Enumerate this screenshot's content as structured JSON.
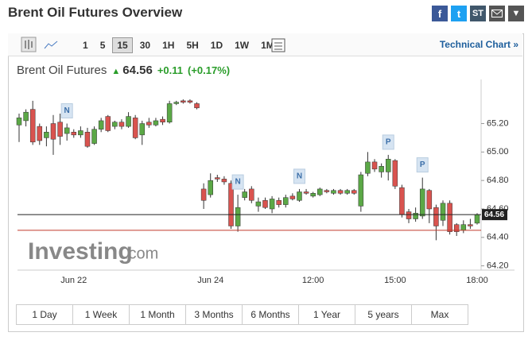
{
  "header": {
    "title": "Brent Oil Futures Overview",
    "share_icons": [
      "f",
      "t",
      "ST"
    ]
  },
  "toolbar": {
    "intervals": [
      "1",
      "5",
      "15",
      "30",
      "1H",
      "5H",
      "1D",
      "1W",
      "1M"
    ],
    "active": "15",
    "link": "Technical Chart »"
  },
  "quote": {
    "name": "Brent Oil Futures",
    "price": "64.56",
    "change": "+0.11",
    "change_pct": "(+0.17%)"
  },
  "watermark": {
    "brand": "Investing",
    "suffix": ".com"
  },
  "chart_data": {
    "type": "candlestick",
    "categories": [
      null,
      null,
      null,
      null,
      null,
      null,
      null,
      null,
      "Jun 22",
      null,
      null,
      null,
      null,
      null,
      null,
      null,
      null,
      null,
      null,
      null,
      null,
      null,
      null,
      null,
      null,
      null,
      null,
      null,
      "Jun 24",
      null,
      null,
      null,
      null,
      null,
      null,
      null,
      null,
      null,
      null,
      null,
      null,
      null,
      null,
      "12:00",
      null,
      null,
      null,
      null,
      null,
      null,
      null,
      null,
      null,
      null,
      null,
      "15:00",
      null,
      null,
      null,
      null,
      null,
      null,
      null,
      null,
      null,
      null,
      null,
      "18:00"
    ],
    "open": [
      65.19,
      65.22,
      65.3,
      65.18,
      65.1,
      65.2,
      65.21,
      65.13,
      65.14,
      65.12,
      65.14,
      65.06,
      65.16,
      65.25,
      65.18,
      65.21,
      65.18,
      65.24,
      65.12,
      65.21,
      65.19,
      65.23,
      65.21,
      65.34,
      65.36,
      65.36,
      65.34,
      64.74,
      64.7,
      64.82,
      64.81,
      64.78,
      64.48,
      64.68,
      64.74,
      64.62,
      64.66,
      64.6,
      64.66,
      64.63,
      64.69,
      64.66,
      64.72,
      64.69,
      64.7,
      64.73,
      64.71,
      64.73,
      64.71,
      64.73,
      64.62,
      64.85,
      64.93,
      64.86,
      64.86,
      64.94,
      64.75,
      64.58,
      64.53,
      64.55,
      64.73,
      64.61,
      64.52,
      64.64,
      64.49,
      64.45,
      64.49,
      64.5
    ],
    "high": [
      65.27,
      65.3,
      65.36,
      65.2,
      65.18,
      65.26,
      65.27,
      65.2,
      65.16,
      65.18,
      65.17,
      65.18,
      65.24,
      65.26,
      65.22,
      65.23,
      65.28,
      65.26,
      65.22,
      65.24,
      65.24,
      65.25,
      65.36,
      65.36,
      65.37,
      65.37,
      65.35,
      64.78,
      64.85,
      64.84,
      64.83,
      64.8,
      64.7,
      64.74,
      64.76,
      64.68,
      64.68,
      64.69,
      64.68,
      64.7,
      64.71,
      64.74,
      64.74,
      64.72,
      64.75,
      64.74,
      64.74,
      64.74,
      64.74,
      64.74,
      64.86,
      65.0,
      64.95,
      64.92,
      64.98,
      64.95,
      64.77,
      64.6,
      64.61,
      64.82,
      64.74,
      64.63,
      64.66,
      64.66,
      64.5,
      64.52,
      64.53,
      64.57
    ],
    "low": [
      65.07,
      65.18,
      65.05,
      65.05,
      65.04,
      64.98,
      65.05,
      65.08,
      65.1,
      65.1,
      65.03,
      65.05,
      65.14,
      65.14,
      65.16,
      65.16,
      65.17,
      65.09,
      65.05,
      65.17,
      65.18,
      65.19,
      65.2,
      65.33,
      65.34,
      65.34,
      65.3,
      64.6,
      64.68,
      64.79,
      64.77,
      64.46,
      64.44,
      64.66,
      64.64,
      64.58,
      64.6,
      64.57,
      64.61,
      64.61,
      64.66,
      64.65,
      64.7,
      64.68,
      64.69,
      64.71,
      64.7,
      64.7,
      64.7,
      64.7,
      64.58,
      64.83,
      64.86,
      64.82,
      64.8,
      64.74,
      64.54,
      64.5,
      64.51,
      64.53,
      64.5,
      64.38,
      64.48,
      64.42,
      64.41,
      64.43,
      64.46,
      64.49
    ],
    "close": [
      65.24,
      65.28,
      65.07,
      65.08,
      65.14,
      65.09,
      65.11,
      65.17,
      65.12,
      65.15,
      65.04,
      65.16,
      65.22,
      65.15,
      65.21,
      65.18,
      65.25,
      65.1,
      65.2,
      65.19,
      65.22,
      65.21,
      65.34,
      65.35,
      65.35,
      65.35,
      65.31,
      64.66,
      64.8,
      64.81,
      64.79,
      64.48,
      64.61,
      64.72,
      64.66,
      64.65,
      64.61,
      64.67,
      64.63,
      64.68,
      64.67,
      64.72,
      64.71,
      64.71,
      64.74,
      64.72,
      64.73,
      64.71,
      64.73,
      64.71,
      64.84,
      64.93,
      64.88,
      64.9,
      64.95,
      64.76,
      64.56,
      64.53,
      64.57,
      64.74,
      64.6,
      64.48,
      64.64,
      64.44,
      64.44,
      64.49,
      64.48,
      64.56
    ],
    "events": [
      null,
      null,
      null,
      null,
      null,
      null,
      null,
      "N",
      null,
      null,
      null,
      null,
      null,
      null,
      null,
      null,
      null,
      null,
      null,
      null,
      null,
      null,
      null,
      null,
      null,
      null,
      null,
      null,
      null,
      null,
      null,
      null,
      "N",
      null,
      null,
      null,
      null,
      null,
      null,
      null,
      null,
      "N",
      null,
      null,
      null,
      null,
      null,
      null,
      null,
      null,
      null,
      null,
      null,
      null,
      "P",
      null,
      null,
      null,
      null,
      "P",
      null,
      null,
      null,
      null,
      null,
      null,
      null,
      null
    ],
    "up_color": "#5ba846",
    "down_color": "#d9534f",
    "last_value": 64.56,
    "prev_close": 64.45,
    "ylim": [
      64.17,
      65.51
    ],
    "yticks": [
      {
        "value": 64.2,
        "label": "64.20"
      },
      {
        "value": 64.4,
        "label": "64.40"
      },
      {
        "value": 64.6,
        "label": "64.60"
      },
      {
        "value": 64.8,
        "label": "64.80"
      },
      {
        "value": 65.0,
        "label": "65.00"
      },
      {
        "value": 65.2,
        "label": "65.20"
      }
    ]
  },
  "ranges": [
    "1 Day",
    "1 Week",
    "1 Month",
    "3 Months",
    "6 Months",
    "1 Year",
    "5 years",
    "Max"
  ]
}
